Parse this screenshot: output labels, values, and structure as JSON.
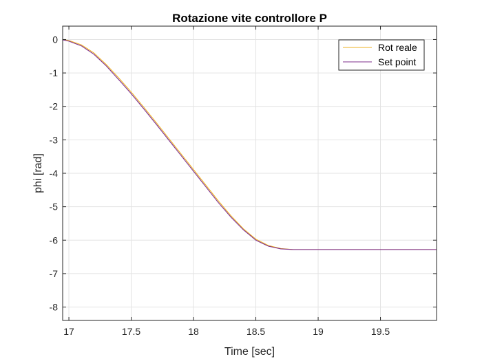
{
  "chart_data": {
    "type": "line",
    "title": "Rotazione vite controllore P",
    "xlabel": "Time [sec]",
    "ylabel": "phi [rad]",
    "xlim": [
      16.95,
      19.95
    ],
    "ylim": [
      -8.4,
      0.4
    ],
    "xticks": [
      17,
      17.5,
      18,
      18.5,
      19,
      19.5
    ],
    "xtick_labels": [
      "17",
      "17.5",
      "18",
      "18.5",
      "19",
      "19.5"
    ],
    "yticks": [
      0,
      -1,
      -2,
      -3,
      -4,
      -5,
      -6,
      -7,
      -8
    ],
    "ytick_labels": [
      "0",
      "-1",
      "-2",
      "-3",
      "-4",
      "-5",
      "-6",
      "-7",
      "-8"
    ],
    "grid": true,
    "legend_position": "top-right",
    "series": [
      {
        "name": "Rot reale",
        "color": "#EDB120",
        "x": [
          16.95,
          17.0,
          17.1,
          17.2,
          17.3,
          17.4,
          17.5,
          17.6,
          17.7,
          17.8,
          17.9,
          18.0,
          18.1,
          18.2,
          18.3,
          18.4,
          18.5,
          18.6,
          18.7,
          18.8,
          18.85,
          18.9,
          19.0,
          19.5,
          19.95
        ],
        "y": [
          0.0,
          -0.03,
          -0.16,
          -0.4,
          -0.75,
          -1.15,
          -1.57,
          -2.02,
          -2.48,
          -2.95,
          -3.42,
          -3.89,
          -4.36,
          -4.83,
          -5.27,
          -5.66,
          -5.97,
          -6.16,
          -6.25,
          -6.28,
          -6.28,
          -6.28,
          -6.28,
          -6.28,
          -6.28
        ]
      },
      {
        "name": "Set point",
        "color": "#7E2F8E",
        "x": [
          16.95,
          17.0,
          17.1,
          17.2,
          17.3,
          17.4,
          17.5,
          17.6,
          17.7,
          17.8,
          17.9,
          18.0,
          18.1,
          18.2,
          18.3,
          18.4,
          18.5,
          18.6,
          18.7,
          18.8,
          18.85,
          18.9,
          19.0,
          19.5,
          19.95
        ],
        "y": [
          -0.01,
          -0.05,
          -0.19,
          -0.44,
          -0.79,
          -1.2,
          -1.62,
          -2.07,
          -2.53,
          -3.0,
          -3.47,
          -3.94,
          -4.41,
          -4.88,
          -5.31,
          -5.69,
          -6.0,
          -6.18,
          -6.26,
          -6.28,
          -6.28,
          -6.28,
          -6.28,
          -6.28,
          -6.28
        ]
      }
    ]
  }
}
